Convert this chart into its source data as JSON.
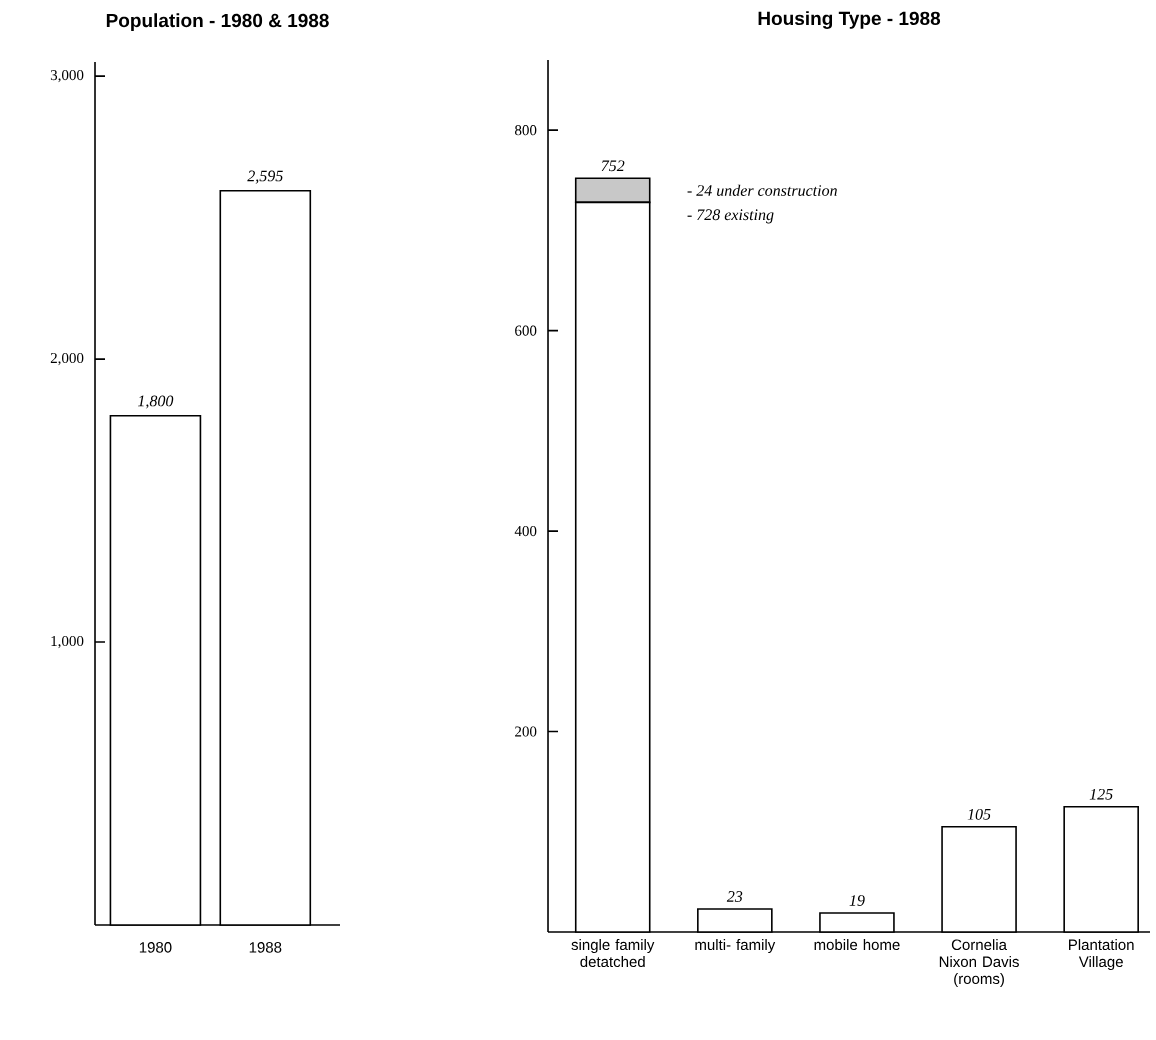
{
  "chart_data": [
    {
      "type": "bar",
      "title": "Population - 1980 & 1988",
      "categories": [
        "1980",
        "1988"
      ],
      "values": [
        1800,
        2595
      ],
      "colors": [
        "#ffffff",
        "#ffffff"
      ],
      "value_labels": [
        "1,800",
        "2,595"
      ],
      "ylim": [
        0,
        3050
      ],
      "yticks": [
        {
          "value": 1000,
          "label": "1,000"
        },
        {
          "value": 2000,
          "label": "2,000"
        },
        {
          "value": 3000,
          "label": "3,000"
        }
      ]
    },
    {
      "type": "bar",
      "title": "Housing Type - 1988",
      "stacked": true,
      "categories": [
        "single family detatched",
        "multi- family",
        "mobile home",
        "Cornelia Nixon Davis (rooms)",
        "Plantation Village"
      ],
      "series": [
        {
          "color": "#ffffff",
          "values": [
            728,
            23,
            19,
            105,
            125
          ]
        },
        {
          "color": "#c8c8c8",
          "values": [
            24,
            null,
            null,
            null,
            null
          ]
        }
      ],
      "totals": [
        "752",
        "23",
        "19",
        "105",
        "125"
      ],
      "annotations": [
        "- 24 under construction",
        "- 728 existing"
      ],
      "ylim": [
        0,
        870
      ],
      "yticks": [
        200,
        400,
        600,
        800
      ]
    }
  ]
}
